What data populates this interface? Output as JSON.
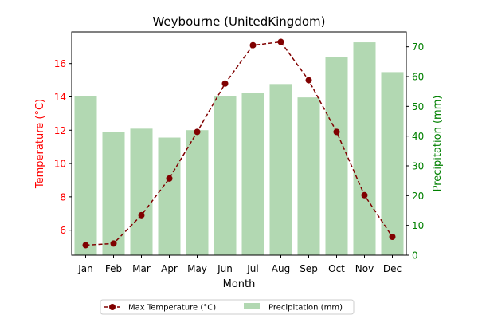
{
  "chart_data": {
    "type": "bar",
    "title": "Weybourne (UnitedKingdom)",
    "xlabel": "Month",
    "ylabel_left": "Temperature (°C)",
    "ylabel_right": "Precipitation (mm)",
    "categories": [
      "Jan",
      "Feb",
      "Mar",
      "Apr",
      "May",
      "Jun",
      "Jul",
      "Aug",
      "Sep",
      "Oct",
      "Nov",
      "Dec"
    ],
    "ylim_left": [
      4.5,
      17.9
    ],
    "ylim_right": [
      0,
      75
    ],
    "yticks_left": [
      6,
      8,
      10,
      12,
      14,
      16
    ],
    "yticks_right": [
      0,
      10,
      20,
      30,
      40,
      50,
      60,
      70
    ],
    "grid": false,
    "legend_position": "bottom-center",
    "series": [
      {
        "name": "Max Temperature (°C)",
        "kind": "line",
        "axis": "left",
        "color": "#800000",
        "style": "dashed",
        "marker": "circle",
        "values": [
          5.1,
          5.2,
          6.9,
          9.1,
          11.9,
          14.8,
          17.1,
          17.3,
          15.0,
          11.9,
          8.1,
          5.6
        ]
      },
      {
        "name": "Precipitation (mm)",
        "kind": "bar",
        "axis": "right",
        "color": "#b2d8b2",
        "values": [
          53.5,
          41.5,
          42.5,
          39.5,
          42.0,
          53.5,
          54.5,
          57.5,
          53.0,
          66.5,
          71.5,
          61.5
        ]
      }
    ],
    "colors": {
      "left_axis": "#ff0000",
      "right_axis": "#008000"
    }
  }
}
